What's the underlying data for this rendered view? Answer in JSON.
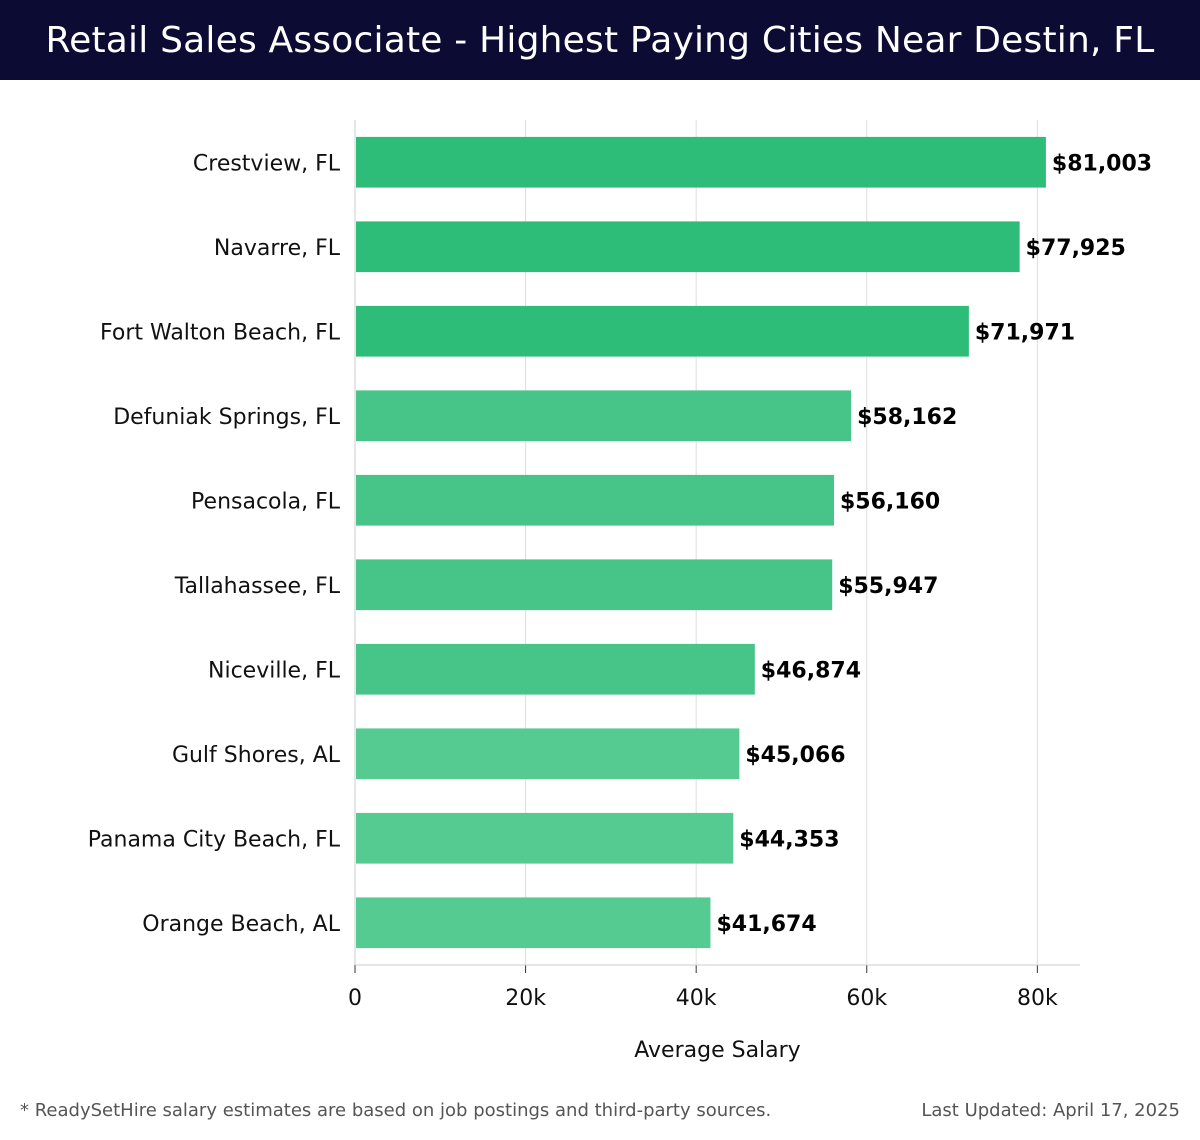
{
  "header": {
    "title": "Retail Sales Associate - Highest Paying Cities Near Destin, FL"
  },
  "footer": {
    "note": "* ReadySetHire salary estimates are based on job postings and third-party sources.",
    "updated": "Last Updated: April 17, 2025"
  },
  "colors": {
    "header_bg": "#0b0b33",
    "bar_top": "#2ebd78",
    "bar_mid": "#47c488",
    "bar_low": "#55cb92",
    "grid": "#dddddd",
    "text": "#111111"
  },
  "chart_data": {
    "type": "bar",
    "orientation": "horizontal",
    "title": "Retail Sales Associate - Highest Paying Cities Near Destin, FL",
    "xlabel": "Average Salary",
    "ylabel": "",
    "xlim": [
      0,
      85000
    ],
    "x_ticks": [
      0,
      20000,
      40000,
      60000,
      80000
    ],
    "x_tick_labels": [
      "0",
      "20k",
      "40k",
      "60k",
      "80k"
    ],
    "grid": true,
    "categories": [
      "Crestview, FL",
      "Navarre, FL",
      "Fort Walton Beach, FL",
      "Defuniak Springs, FL",
      "Pensacola, FL",
      "Tallahassee, FL",
      "Niceville, FL",
      "Gulf Shores, AL",
      "Panama City Beach, FL",
      "Orange Beach, AL"
    ],
    "values": [
      81003,
      77925,
      71971,
      58162,
      56160,
      55947,
      46874,
      45066,
      44353,
      41674
    ],
    "value_labels": [
      "$81,003",
      "$77,925",
      "$71,971",
      "$58,162",
      "$56,160",
      "$55,947",
      "$46,874",
      "$45,066",
      "$44,353",
      "$41,674"
    ]
  }
}
